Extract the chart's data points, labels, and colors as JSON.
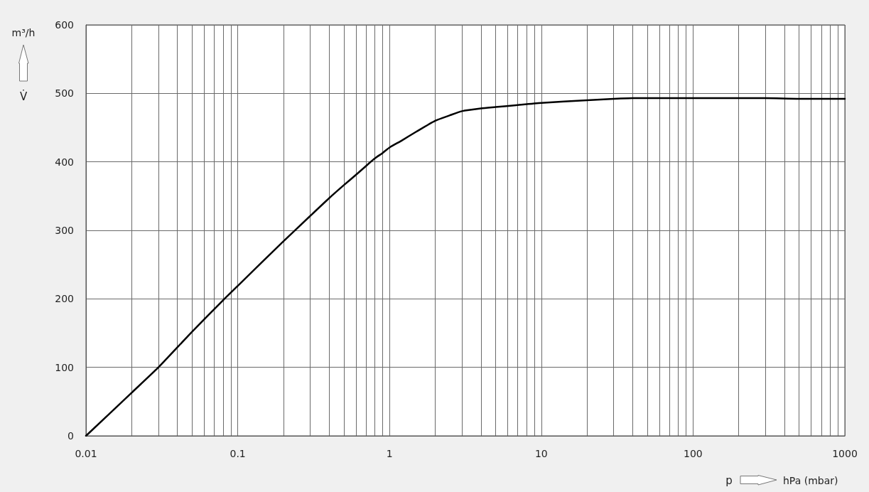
{
  "chart_data": {
    "type": "line",
    "xlabel": "hPa (mbar)",
    "ylabel": "m³/h",
    "annotations": [
      "V̇",
      "p"
    ],
    "x": [
      0.01,
      0.02,
      0.03,
      0.05,
      0.08,
      0.1,
      0.2,
      0.3,
      0.4,
      0.5,
      0.6,
      0.7,
      0.8,
      0.9,
      1,
      1.2,
      1.5,
      2,
      2.5,
      3,
      4,
      5,
      7,
      10,
      20,
      30,
      40,
      100,
      200,
      300,
      500,
      1000
    ],
    "series": [
      {
        "color": "#000000",
        "values": [
          0,
          63,
          100,
          152,
          198,
          219,
          284,
          321,
          347,
          366,
          381,
          394,
          405,
          413,
          421,
          431,
          444,
          460,
          468,
          474,
          478,
          480,
          483,
          486,
          490,
          492,
          493,
          493,
          493,
          493,
          492,
          492
        ]
      }
    ],
    "log": "x",
    "xlim": [
      0.01,
      1000
    ],
    "xticks": [
      0.01,
      {
        "value": 0.02,
        "label": null
      },
      {
        "value": 0.03,
        "label": null
      },
      {
        "value": 0.04,
        "label": null
      },
      {
        "value": 0.05,
        "label": null
      },
      {
        "value": 0.06,
        "label": null
      },
      {
        "value": 0.07,
        "label": null
      },
      {
        "value": 0.08,
        "label": null
      },
      {
        "value": 0.09,
        "label": null
      },
      0.1,
      {
        "value": 0.2,
        "label": null
      },
      {
        "value": 0.3,
        "label": null
      },
      {
        "value": 0.4,
        "label": null
      },
      {
        "value": 0.5,
        "label": null
      },
      {
        "value": 0.6,
        "label": null
      },
      {
        "value": 0.7,
        "label": null
      },
      {
        "value": 0.8,
        "label": null
      },
      {
        "value": 0.9,
        "label": null
      },
      1,
      {
        "value": 2,
        "label": null
      },
      {
        "value": 3,
        "label": null
      },
      {
        "value": 4,
        "label": null
      },
      {
        "value": 5,
        "label": null
      },
      {
        "value": 6,
        "label": null
      },
      {
        "value": 7,
        "label": null
      },
      {
        "value": 8,
        "label": null
      },
      {
        "value": 9,
        "label": null
      },
      10,
      {
        "value": 20,
        "label": null
      },
      {
        "value": 30,
        "label": null
      },
      {
        "value": 40,
        "label": null
      },
      {
        "value": 50,
        "label": null
      },
      {
        "value": 60,
        "label": null
      },
      {
        "value": 70,
        "label": null
      },
      {
        "value": 80,
        "label": null
      },
      {
        "value": 90,
        "label": null
      },
      100,
      {
        "value": 200,
        "label": null
      },
      {
        "value": 300,
        "label": null
      },
      {
        "value": 400,
        "label": null
      },
      {
        "value": 500,
        "label": null
      },
      {
        "value": 600,
        "label": null
      },
      {
        "value": 700,
        "label": null
      },
      {
        "value": 800,
        "label": null
      },
      {
        "value": 900,
        "label": null
      },
      1000
    ],
    "ylim": [
      0,
      600
    ],
    "yticks": [
      0,
      100,
      200,
      300,
      400,
      500,
      600
    ],
    "grid": true
  }
}
